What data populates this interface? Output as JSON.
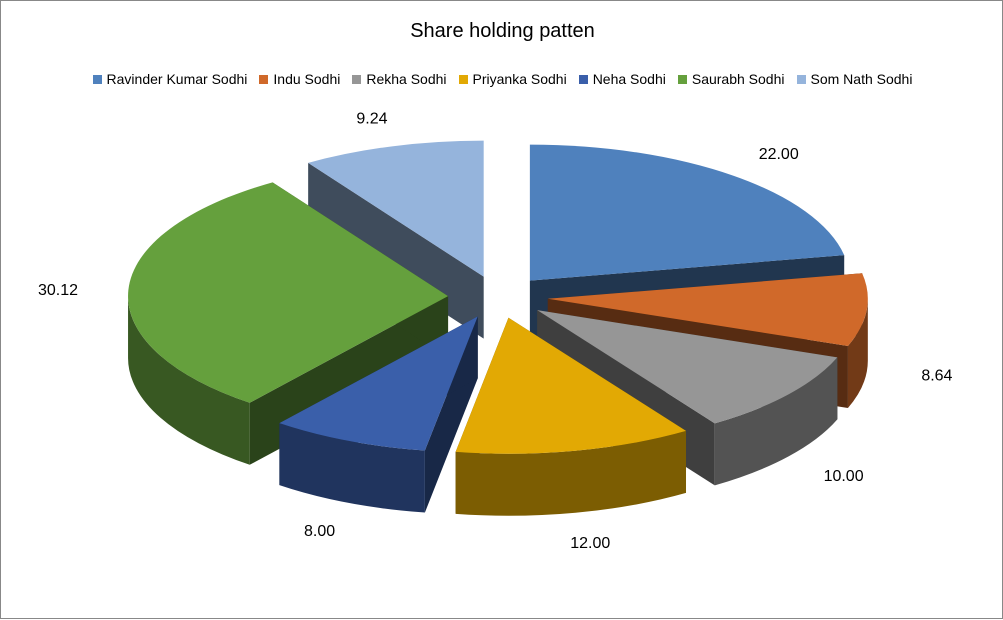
{
  "chart_data": {
    "type": "pie",
    "title": "Share holding patten",
    "legend_position": "top",
    "slices": [
      {
        "name": "Ravinder Kumar Sodhi",
        "value": 22.0,
        "label": "22.00",
        "color": "#4F81BD"
      },
      {
        "name": "Indu Sodhi",
        "value": 8.64,
        "label": "8.64",
        "color": "#D0692A"
      },
      {
        "name": "Rekha Sodhi",
        "value": 10.0,
        "label": "10.00",
        "color": "#969696"
      },
      {
        "name": "Priyanka Sodhi",
        "value": 12.0,
        "label": "12.00",
        "color": "#E2A904"
      },
      {
        "name": "Neha Sodhi",
        "value": 8.0,
        "label": "8.00",
        "color": "#3A5FAA"
      },
      {
        "name": "Saurabh Sodhi",
        "value": 30.12,
        "label": "30.12",
        "color": "#65A03D"
      },
      {
        "name": "Som Nath Sodhi",
        "value": 9.24,
        "label": "9.24",
        "color": "#95B4DC"
      }
    ]
  }
}
